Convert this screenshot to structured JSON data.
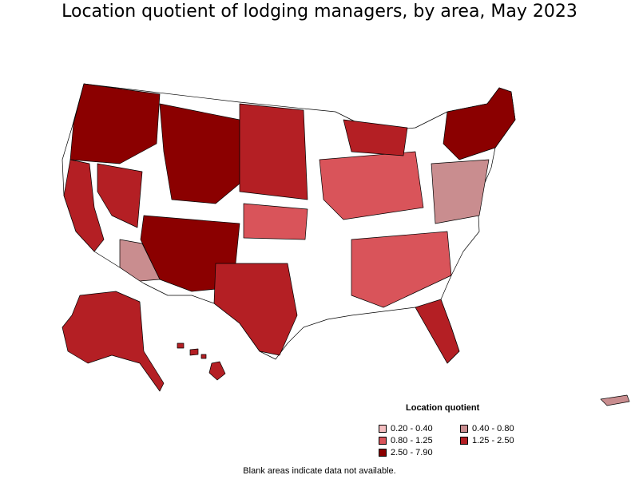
{
  "title": "Location quotient of lodging managers, by area, May 2023",
  "legend": {
    "title": "Location quotient",
    "items": [
      {
        "label": "0.20 - 0.40",
        "color": "#f4bec0"
      },
      {
        "label": "0.40 - 0.80",
        "color": "#c98d8f"
      },
      {
        "label": "0.80 - 1.25",
        "color": "#d9545a"
      },
      {
        "label": "1.25 - 2.50",
        "color": "#b41f24"
      },
      {
        "label": "2.50 - 7.90",
        "color": "#8b0000"
      }
    ]
  },
  "footnote": "Blank areas indicate data not available.",
  "colors": {
    "border": "#000000",
    "no_data": "#ffffff"
  }
}
